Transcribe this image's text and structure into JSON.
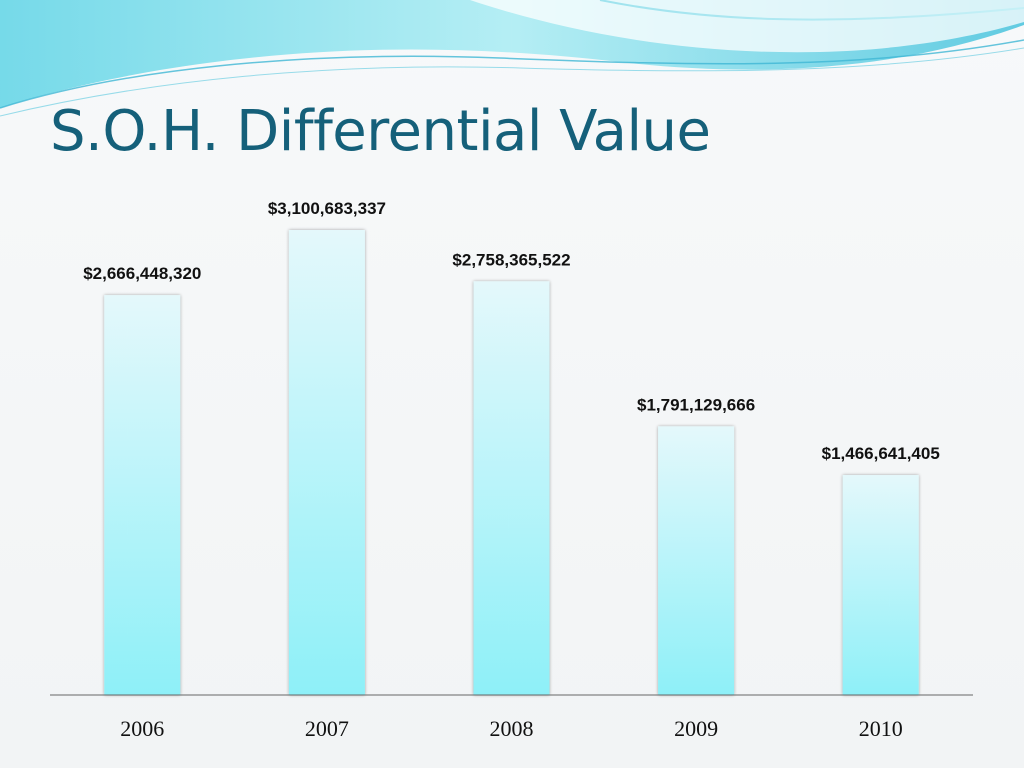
{
  "slide": {
    "title": "S.O.H. Differential Value"
  },
  "colors": {
    "title": "#15607a",
    "bar_top": "#e4f8fb",
    "bar_bottom": "#8ef0f8",
    "axis": "#666666"
  },
  "chart_data": {
    "type": "bar",
    "title": "",
    "xlabel": "",
    "ylabel": "",
    "categories": [
      "2006",
      "2007",
      "2008",
      "2009",
      "2010"
    ],
    "values": [
      2666448320,
      3100683337,
      2758365522,
      1791129666,
      1466641405
    ],
    "value_labels": [
      "$2,666,448,320",
      "$3,100,683,337",
      "$2,758,365,522",
      "$1,791,129,666",
      "$1,466,641,405"
    ],
    "ylim": [
      0,
      3100683337
    ],
    "grid": false,
    "legend": "none"
  }
}
